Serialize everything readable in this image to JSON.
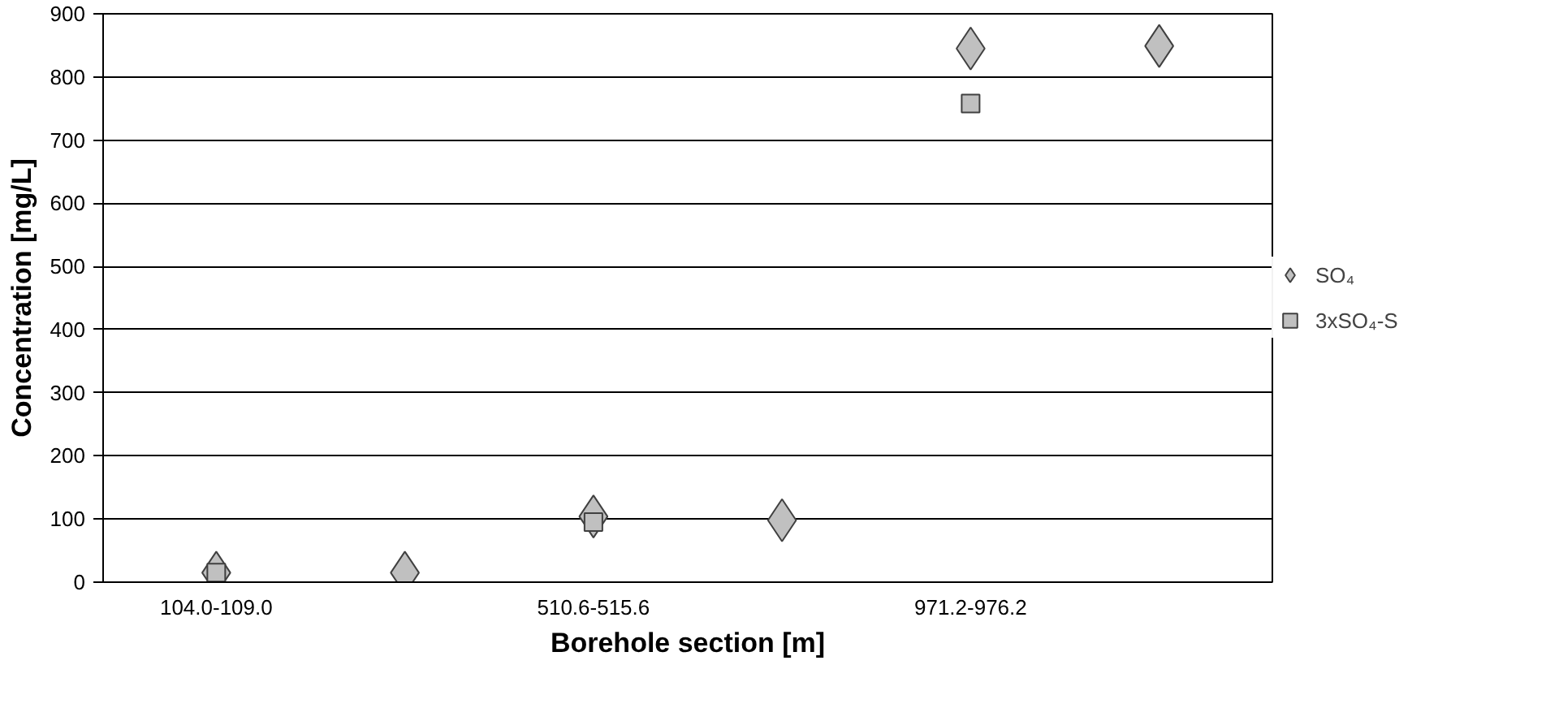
{
  "chart_data": {
    "type": "scatter",
    "xlabel": "Borehole section [m]",
    "ylabel": "Concentration [mg/L]",
    "categories": [
      "104.0-109.0",
      null,
      "510.6-515.6",
      null,
      "971.2-976.2",
      null
    ],
    "ylim": [
      0,
      900
    ],
    "yticks": [
      0,
      100,
      200,
      300,
      400,
      500,
      600,
      700,
      800,
      900
    ],
    "grid": "y",
    "legend": "right",
    "series": [
      {
        "name": "SO₄",
        "color": "#c0c0c0",
        "marker": "diamond",
        "values": [
          15,
          15,
          104,
          98,
          845,
          849
        ]
      },
      {
        "name": "3xSO₄-S",
        "color": "#c0c0c0",
        "marker": "square",
        "values": [
          15,
          null,
          95,
          null,
          758,
          null
        ]
      }
    ]
  }
}
